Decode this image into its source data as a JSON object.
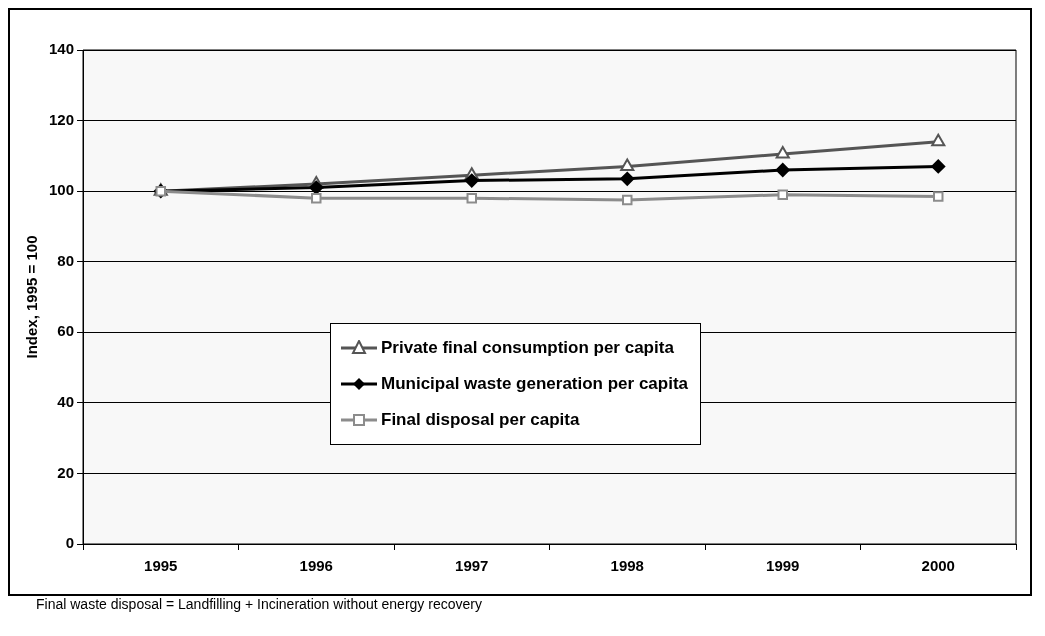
{
  "chart_data": {
    "type": "line",
    "ylabel": "Index, 1995 = 100",
    "categories": [
      "1995",
      "1996",
      "1997",
      "1998",
      "1999",
      "2000"
    ],
    "series": [
      {
        "name": "Private final consumption per capita",
        "color": "#555555",
        "marker": "triangle",
        "values": [
          100,
          102,
          104.5,
          107,
          110.5,
          114
        ]
      },
      {
        "name": "Municipal waste generation per capita",
        "color": "#000000",
        "marker": "diamond",
        "values": [
          100,
          101,
          103,
          103.5,
          106,
          107
        ]
      },
      {
        "name": "Final disposal per capita",
        "color": "#8c8c8c",
        "marker": "square",
        "values": [
          100,
          98,
          98,
          97.5,
          99,
          98.5
        ]
      }
    ],
    "ylim": [
      0,
      140
    ],
    "yticks": [
      0,
      20,
      40,
      60,
      80,
      100,
      120,
      140
    ],
    "grid": "y",
    "legend": "center",
    "annotations": [
      "Final waste disposal = Landfilling + Incineration without energy recovery"
    ]
  }
}
